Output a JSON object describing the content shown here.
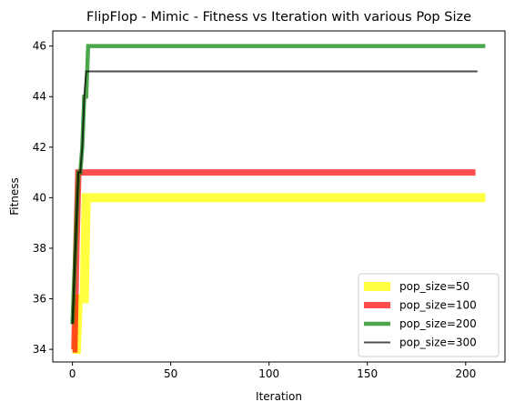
{
  "chart_data": {
    "type": "line",
    "title": "FlipFlop - Mimic - Fitness vs Iteration with various Pop Size",
    "xlabel": "Iteration",
    "ylabel": "Fitness",
    "xlim": [
      -10,
      220
    ],
    "ylim": [
      33.5,
      46.6
    ],
    "xticks": [
      0,
      50,
      100,
      150,
      200
    ],
    "yticks": [
      34,
      36,
      38,
      40,
      42,
      44,
      46
    ],
    "grid": false,
    "legend_position": "lower-right",
    "series": [
      {
        "name": "pop_size=50",
        "color": "#ffff00",
        "opacity": 0.75,
        "line_width": 10,
        "x": [
          0,
          1,
          2,
          3,
          4,
          5,
          6,
          7,
          8,
          210
        ],
        "y": [
          34,
          34,
          34,
          36,
          36,
          36,
          36,
          40,
          40,
          40
        ]
      },
      {
        "name": "pop_size=100",
        "color": "#ff0000",
        "opacity": 0.7,
        "line_width": 7,
        "x": [
          0,
          1,
          2,
          3,
          205
        ],
        "y": [
          34,
          34,
          38,
          41,
          41
        ]
      },
      {
        "name": "pop_size=200",
        "color": "#008000",
        "opacity": 0.7,
        "line_width": 4.5,
        "x": [
          0,
          1,
          2,
          3,
          4,
          5,
          6,
          7,
          8,
          210
        ],
        "y": [
          35,
          37,
          39,
          41,
          41,
          42,
          44,
          44,
          46,
          46
        ]
      },
      {
        "name": "pop_size=300",
        "color": "#000000",
        "opacity": 0.7,
        "line_width": 2,
        "x": [
          0,
          1,
          2,
          3,
          4,
          5,
          6,
          7,
          206
        ],
        "y": [
          35,
          37,
          39,
          41,
          41,
          42,
          44,
          45,
          45
        ]
      }
    ]
  }
}
